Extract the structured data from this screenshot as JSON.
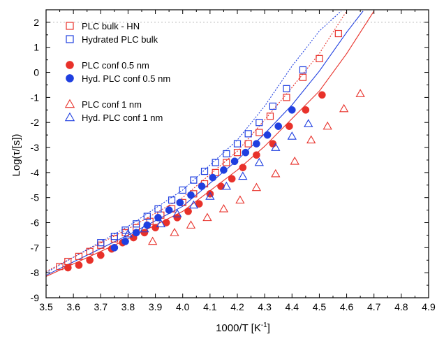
{
  "chart_data": {
    "type": "scatter",
    "xlabel": "1000/T [K",
    "xlabel_sup": "-1",
    "xlabel_end": "]",
    "ylabel": "Log(τ/[s])",
    "xlim": [
      3.5,
      4.9
    ],
    "ylim": [
      -9,
      2.5
    ],
    "x_ticks": [
      "3.5",
      "3.6",
      "3.7",
      "3.8",
      "3.9",
      "4.0",
      "4.1",
      "4.2",
      "4.3",
      "4.4",
      "4.5",
      "4.6",
      "4.7",
      "4.8",
      "4.9"
    ],
    "y_ticks": [
      "-9",
      "-8",
      "-7",
      "-6",
      "-5",
      "-4",
      "-3",
      "-2",
      "-1",
      "0",
      "1",
      "2"
    ],
    "reference_line_y": 2,
    "legend_position": "top-left",
    "colors": {
      "red": "#e8312a",
      "blue": "#1f3fe0"
    },
    "series": [
      {
        "name": "PLC bulk - HN",
        "marker": "square-open",
        "color": "#e8312a",
        "x": [
          3.55,
          3.58,
          3.62,
          3.66,
          3.7,
          3.75,
          3.79,
          3.83,
          3.88,
          3.92,
          3.96,
          4.0,
          4.04,
          4.08,
          4.12,
          4.16,
          4.2,
          4.24,
          4.28,
          4.32,
          4.38,
          4.44,
          4.5,
          4.57
        ],
        "y": [
          -7.75,
          -7.55,
          -7.35,
          -7.15,
          -6.9,
          -6.65,
          -6.4,
          -6.2,
          -5.95,
          -5.7,
          -5.45,
          -5.2,
          -4.85,
          -4.45,
          -4.0,
          -3.6,
          -3.2,
          -2.85,
          -2.4,
          -1.75,
          -1.0,
          -0.2,
          0.55,
          1.55
        ]
      },
      {
        "name": "Hydrated PLC bulk",
        "marker": "square-open",
        "color": "#1f3fe0",
        "x": [
          3.7,
          3.75,
          3.79,
          3.83,
          3.87,
          3.91,
          3.96,
          4.0,
          4.04,
          4.08,
          4.12,
          4.16,
          4.2,
          4.24,
          4.28,
          4.33,
          4.38,
          4.44
        ],
        "y": [
          -6.8,
          -6.55,
          -6.3,
          -6.05,
          -5.75,
          -5.45,
          -5.1,
          -4.7,
          -4.3,
          -3.95,
          -3.6,
          -3.25,
          -2.85,
          -2.45,
          -2.0,
          -1.35,
          -0.65,
          0.1
        ]
      },
      {
        "name": "PLC conf 0.5 nm",
        "marker": "circle-filled",
        "color": "#e8312a",
        "x": [
          3.58,
          3.62,
          3.66,
          3.7,
          3.74,
          3.78,
          3.82,
          3.86,
          3.9,
          3.94,
          3.98,
          4.02,
          4.06,
          4.1,
          4.14,
          4.18,
          4.22,
          4.27,
          4.33,
          4.39,
          4.45,
          4.51
        ],
        "y": [
          -7.8,
          -7.7,
          -7.5,
          -7.3,
          -7.05,
          -6.8,
          -6.6,
          -6.4,
          -6.2,
          -6.0,
          -5.8,
          -5.55,
          -5.25,
          -4.85,
          -4.55,
          -4.25,
          -3.8,
          -3.3,
          -2.85,
          -2.15,
          -1.5,
          -0.9
        ]
      },
      {
        "name": "Hyd. PLC conf  0.5 nm",
        "marker": "circle-filled",
        "color": "#1f3fe0",
        "x": [
          3.75,
          3.79,
          3.83,
          3.87,
          3.91,
          3.95,
          3.99,
          4.03,
          4.07,
          4.11,
          4.15,
          4.19,
          4.23,
          4.27,
          4.31,
          4.35,
          4.4
        ],
        "y": [
          -7.0,
          -6.75,
          -6.4,
          -6.1,
          -5.8,
          -5.5,
          -5.2,
          -4.9,
          -4.55,
          -4.2,
          -3.9,
          -3.55,
          -3.2,
          -2.85,
          -2.5,
          -2.15,
          -1.5
        ]
      },
      {
        "name": "PLC conf  1 nm",
        "marker": "triangle-open",
        "color": "#e8312a",
        "x": [
          3.89,
          3.97,
          4.03,
          4.09,
          4.15,
          4.21,
          4.27,
          4.34,
          4.41,
          4.47,
          4.53,
          4.59,
          4.65
        ],
        "y": [
          -6.75,
          -6.4,
          -6.1,
          -5.8,
          -5.45,
          -5.1,
          -4.6,
          -4.05,
          -3.55,
          -2.7,
          -2.15,
          -1.45,
          -0.85
        ]
      },
      {
        "name": "Hyd. PLC conf  1 nm",
        "marker": "triangle-open",
        "color": "#1f3fe0",
        "x": [
          3.8,
          3.86,
          3.92,
          3.98,
          4.04,
          4.1,
          4.16,
          4.22,
          4.28,
          4.34,
          4.4,
          4.46
        ],
        "y": [
          -6.45,
          -6.25,
          -6.05,
          -5.65,
          -5.3,
          -4.95,
          -4.55,
          -4.15,
          -3.6,
          -3.0,
          -2.55,
          -2.05
        ]
      }
    ],
    "fit_curves": [
      {
        "color": "#e8312a",
        "dash": "dotted",
        "x": [
          3.5,
          3.8,
          4.0,
          4.2,
          4.3,
          4.4,
          4.5,
          4.6
        ],
        "y": [
          -7.95,
          -6.25,
          -5.0,
          -3.15,
          -1.9,
          -0.6,
          0.75,
          2.45
        ]
      },
      {
        "color": "#1f3fe0",
        "dash": "dotted",
        "x": [
          3.5,
          3.8,
          4.0,
          4.2,
          4.3,
          4.4,
          4.5,
          4.58
        ],
        "y": [
          -8.0,
          -6.15,
          -4.7,
          -2.7,
          -1.35,
          0.25,
          1.65,
          2.45
        ]
      },
      {
        "color": "#e8312a",
        "dash": "solid",
        "x": [
          3.5,
          3.8,
          4.0,
          4.2,
          4.3,
          4.4,
          4.5,
          4.6,
          4.7
        ],
        "y": [
          -8.15,
          -6.65,
          -5.55,
          -3.9,
          -2.95,
          -1.85,
          -0.75,
          0.75,
          2.45
        ]
      },
      {
        "color": "#1f3fe0",
        "dash": "solid",
        "x": [
          3.5,
          3.8,
          4.0,
          4.2,
          4.3,
          4.4,
          4.5,
          4.6,
          4.66
        ],
        "y": [
          -8.1,
          -6.5,
          -5.35,
          -3.5,
          -2.45,
          -1.3,
          0.05,
          1.6,
          2.45
        ]
      }
    ]
  }
}
